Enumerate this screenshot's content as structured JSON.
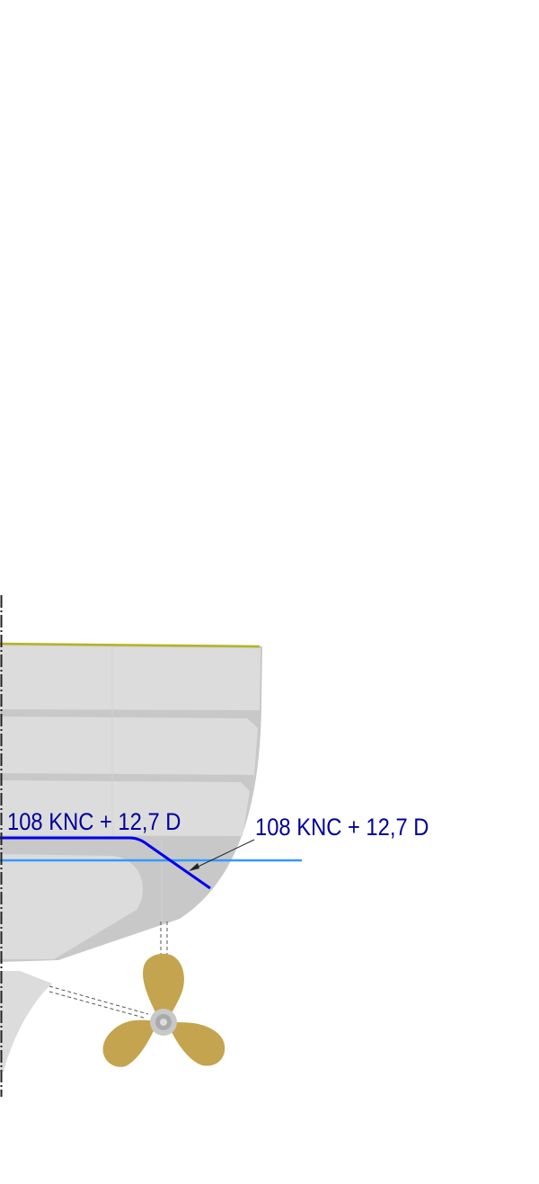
{
  "diagram": {
    "labels": {
      "inner_coating": "108 KNC + 12,7 D",
      "callout_coating": "108 KNC + 12,7 D"
    },
    "colors": {
      "hull_dark": "#c8c8c8",
      "hull_light": "#dcdcdc",
      "deck_line": "#b5b41e",
      "coating_line": "#0000ee",
      "waterline": "#3399ff",
      "label_text": "#000099",
      "propeller": "#c4a44e"
    },
    "icons": {
      "propeller": "propeller-icon",
      "centerline": "dash-dot-centerline"
    }
  }
}
